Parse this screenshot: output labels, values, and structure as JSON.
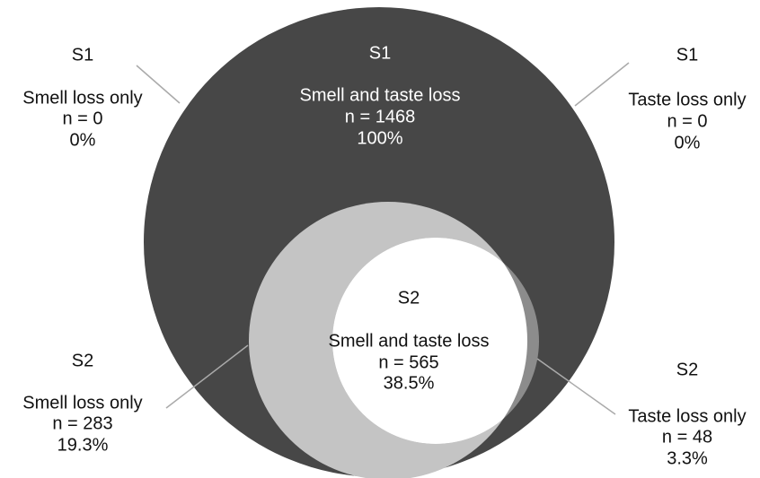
{
  "s1": {
    "label_left": "S1",
    "label_center": "S1",
    "label_right": "S1",
    "smell_only": {
      "title": "Smell loss only",
      "n": "n = 0",
      "pct": "0%"
    },
    "both": {
      "title": "Smell and taste loss",
      "n": "n = 1468",
      "pct": "100%"
    },
    "taste_only": {
      "title": "Taste loss only",
      "n": "n = 0",
      "pct": "0%"
    }
  },
  "s2": {
    "label_left": "S2",
    "label_center": "S2",
    "label_right": "S2",
    "smell_only": {
      "title": "Smell loss only",
      "n": "n = 283",
      "pct": "19.3%"
    },
    "both": {
      "title": "Smell and taste loss",
      "n": "n = 565",
      "pct": "38.5%"
    },
    "taste_only": {
      "title": "Taste loss only",
      "n": "n = 48",
      "pct": "3.3%"
    }
  }
}
